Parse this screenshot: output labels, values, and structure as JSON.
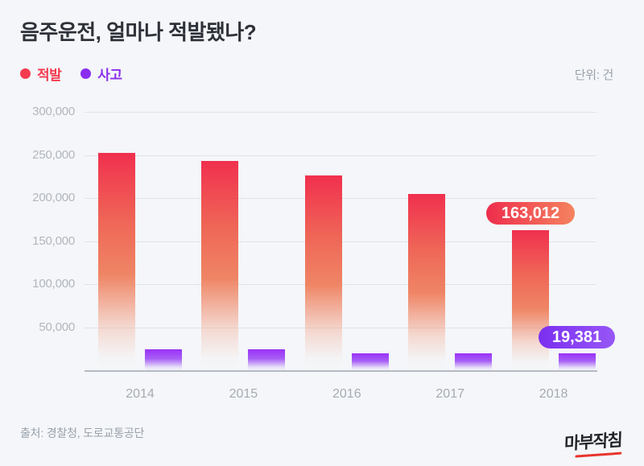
{
  "page": {
    "title": "음주운전, 얼마나 적발됐나?",
    "unit_label": "단위: 건",
    "source": "출처: 경찰청, 도로교통공단",
    "logo": "마부작침"
  },
  "legend": [
    {
      "label": "적발",
      "color": "#f43b50"
    },
    {
      "label": "사고",
      "color": "#8a2ef0"
    }
  ],
  "chart_data": {
    "type": "bar",
    "title": "음주운전, 얼마나 적발됐나?",
    "unit": "건",
    "categories": [
      "2014",
      "2015",
      "2016",
      "2017",
      "2018"
    ],
    "series": [
      {
        "name": "적발",
        "color": "#f0304e",
        "color_mid": "#ef8565",
        "values": [
          252000,
          243000,
          226500,
          205000,
          163012
        ]
      },
      {
        "name": "사고",
        "color": "#9a32f8",
        "color_mid": "#a75ef5",
        "values": [
          24000,
          24400,
          19800,
          19500,
          19381
        ]
      }
    ],
    "ylim": [
      0,
      300000
    ],
    "yticks": [
      50000,
      100000,
      150000,
      200000,
      250000,
      300000
    ],
    "grid": true,
    "legend_position": "top-left",
    "annotations": [
      {
        "series": "적발",
        "category": "2018",
        "text": "163,012",
        "color_from": "#ee2d4d",
        "color_to": "#f5835f"
      },
      {
        "series": "사고",
        "category": "2018",
        "text": "19,381",
        "color_from": "#7b2ff0",
        "color_to": "#9757f6"
      }
    ]
  }
}
